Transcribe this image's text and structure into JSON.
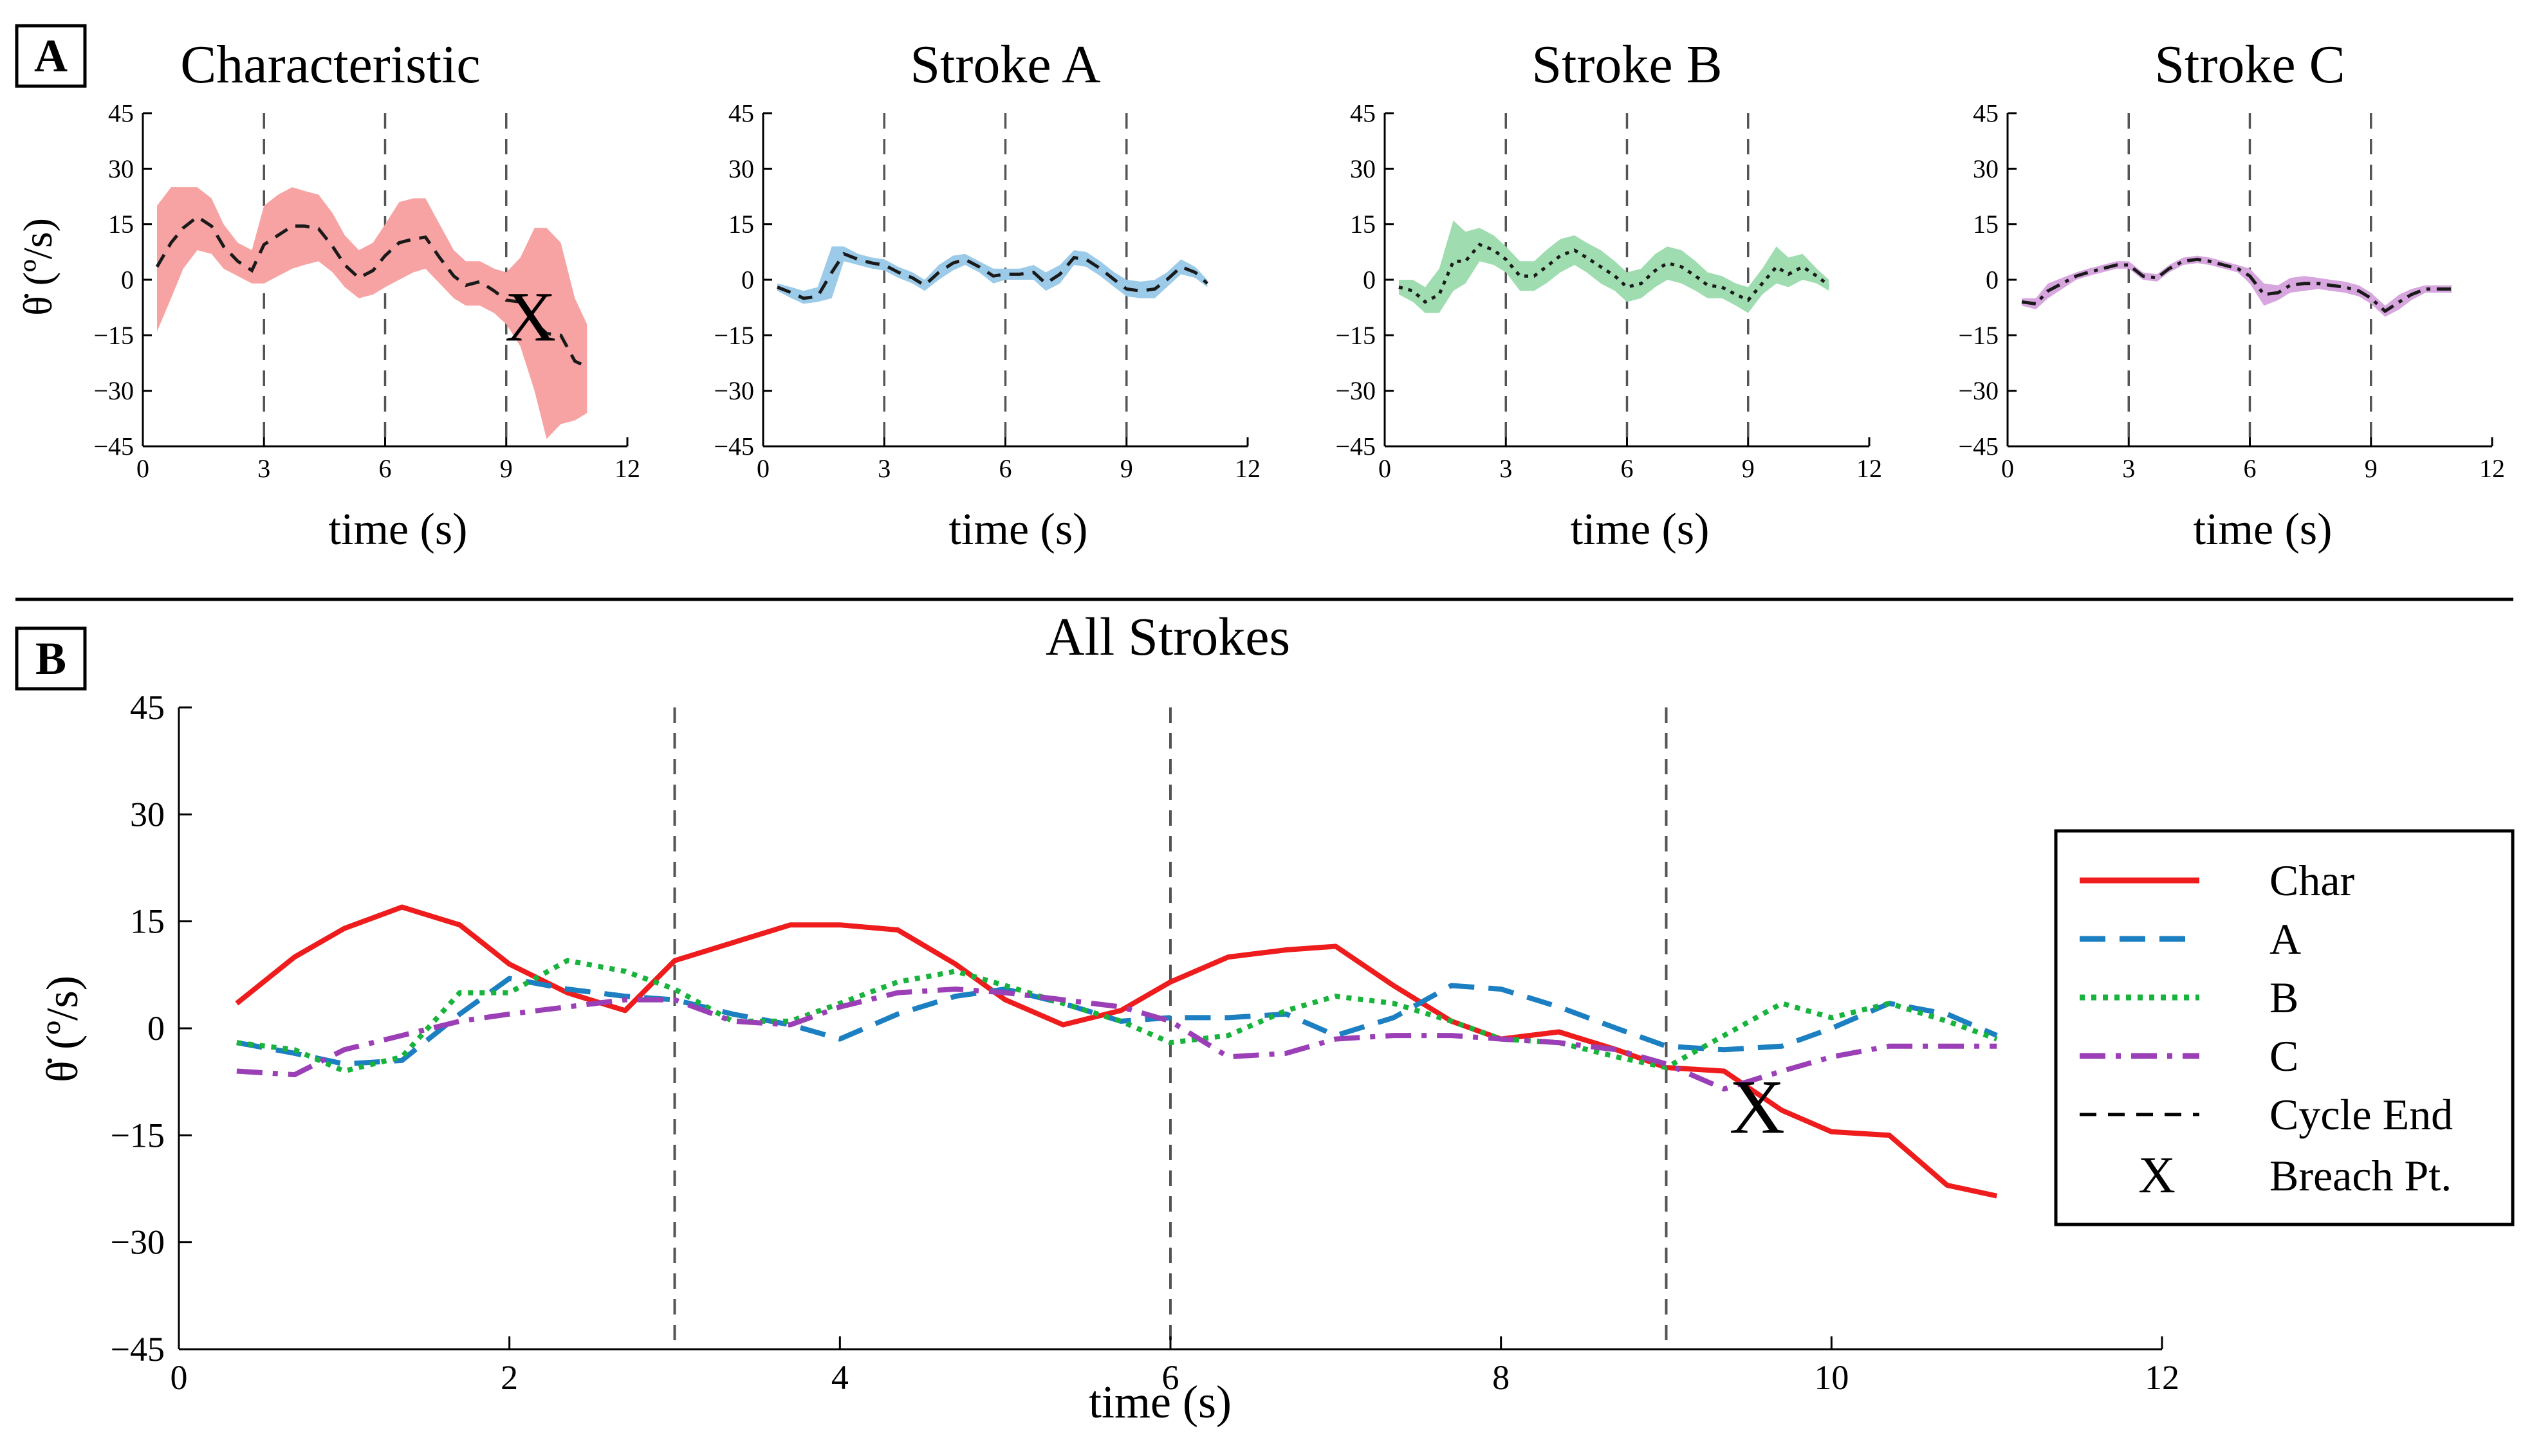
{
  "panel_labels": {
    "a": "A",
    "b": "B"
  },
  "legend": {
    "entries": [
      {
        "key": "char",
        "label": "Char"
      },
      {
        "key": "a",
        "label": "A"
      },
      {
        "key": "b",
        "label": "B"
      },
      {
        "key": "c",
        "label": "C"
      },
      {
        "key": "cycle",
        "label": "Cycle End"
      },
      {
        "key": "breach",
        "label": "Breach Pt."
      }
    ],
    "breach_marker": "X"
  },
  "colors": {
    "char": "#ee1c1c",
    "a": "#1b7fc1",
    "b": "#18b33c",
    "c": "#9b3fb6",
    "char_band": "#f7a3a3",
    "a_band": "#9ccbe9",
    "b_band": "#9fddb0",
    "c_band": "#d7a6df",
    "mean_line": "#1a1a1a"
  },
  "chart_data": [
    {
      "id": "char",
      "type": "area",
      "title": "Characteristic",
      "xlabel": "time (s)",
      "ylabel": "θ̇ (º/s)",
      "xlim": [
        0,
        12
      ],
      "ylim": [
        -45,
        45
      ],
      "xticks": [
        0,
        3,
        6,
        9,
        12
      ],
      "yticks": [
        45,
        30,
        15,
        0,
        -15,
        -30,
        -45
      ],
      "cycle_ends": [
        3,
        6,
        9
      ],
      "breach": {
        "x": 9.6,
        "y": -10,
        "marker": "X"
      },
      "x": [
        0.35,
        0.7,
        1.0,
        1.35,
        1.7,
        2.0,
        2.35,
        2.7,
        3.0,
        3.35,
        3.7,
        4.0,
        4.35,
        4.7,
        5.0,
        5.35,
        5.7,
        6.0,
        6.35,
        6.7,
        7.0,
        7.35,
        7.7,
        8.0,
        8.35,
        8.7,
        9.0,
        9.35,
        9.7,
        10.0,
        10.35,
        10.7,
        11.0
      ],
      "mean": [
        3.5,
        10,
        14,
        17,
        14.5,
        9,
        5,
        2.5,
        9.5,
        12,
        14.5,
        14.5,
        13.8,
        9,
        4,
        0.5,
        2.5,
        6.5,
        10,
        11,
        11.5,
        6,
        1,
        -1.5,
        -0.5,
        -3,
        -5.5,
        -6,
        -11.5,
        -14.5,
        -15,
        -22,
        -23.5
      ],
      "upper": [
        20,
        25,
        25,
        25,
        22,
        15,
        10,
        8,
        20,
        23,
        25,
        24,
        23,
        18,
        12,
        8,
        10,
        15,
        21,
        22,
        22,
        15,
        8,
        5,
        5,
        3,
        2,
        6,
        14,
        14,
        10,
        -5,
        -12
      ],
      "lower": [
        -14,
        -5,
        3,
        8,
        7,
        3,
        1,
        -1,
        -1,
        1,
        3,
        4,
        5,
        2,
        -2,
        -5,
        -4,
        -2,
        0,
        2,
        3,
        -1,
        -5,
        -7,
        -7,
        -9,
        -12,
        -18,
        -30,
        -43,
        -39,
        -38,
        -36
      ]
    },
    {
      "id": "a",
      "type": "area",
      "title": "Stroke A",
      "xlabel": "time (s)",
      "ylabel": "",
      "xlim": [
        0,
        12
      ],
      "ylim": [
        -45,
        45
      ],
      "xticks": [
        0,
        3,
        6,
        9,
        12
      ],
      "yticks": [
        45,
        30,
        15,
        0,
        -15,
        -30,
        -45
      ],
      "cycle_ends": [
        3,
        6,
        9
      ],
      "x": [
        0.35,
        0.7,
        1.0,
        1.35,
        1.7,
        2.0,
        2.35,
        2.7,
        3.0,
        3.35,
        3.7,
        4.0,
        4.35,
        4.7,
        5.0,
        5.35,
        5.7,
        6.0,
        6.35,
        6.7,
        7.0,
        7.35,
        7.7,
        8.0,
        8.35,
        8.7,
        9.0,
        9.35,
        9.7,
        10.0,
        10.35,
        10.7,
        11.0
      ],
      "mean": [
        -2,
        -3.5,
        -5,
        -4.5,
        2,
        7,
        5.5,
        4.5,
        4,
        2,
        0.5,
        -1.5,
        2,
        4.5,
        5.5,
        3.5,
        1,
        1.5,
        1.5,
        2,
        -1,
        1.5,
        6,
        5.5,
        3,
        0,
        -2.5,
        -3,
        -2.5,
        0,
        3.5,
        2,
        -1
      ],
      "upper": [
        -1,
        -2,
        -3,
        -2,
        9,
        9,
        7,
        6,
        5.5,
        3.5,
        2,
        0,
        4,
        6.5,
        7,
        5,
        3,
        3,
        3,
        4,
        2,
        4,
        8,
        7.5,
        5,
        2,
        0,
        -0.5,
        0,
        2,
        5.5,
        3.5,
        0
      ],
      "lower": [
        -3,
        -5,
        -6.5,
        -6,
        -5,
        5,
        4,
        3,
        2.5,
        0.5,
        -1,
        -3,
        0,
        2.5,
        4,
        2,
        -1,
        0,
        0,
        0,
        -3,
        -1,
        4,
        3.5,
        1,
        -2,
        -4.5,
        -5,
        -5,
        -2,
        1.5,
        0.5,
        -2
      ]
    },
    {
      "id": "b",
      "type": "area",
      "title": "Stroke B",
      "xlabel": "time (s)",
      "ylabel": "",
      "xlim": [
        0,
        12
      ],
      "ylim": [
        -45,
        45
      ],
      "xticks": [
        0,
        3,
        6,
        9,
        12
      ],
      "yticks": [
        45,
        30,
        15,
        0,
        -15,
        -30,
        -45
      ],
      "cycle_ends": [
        3,
        6,
        9
      ],
      "x": [
        0.35,
        0.7,
        1.0,
        1.35,
        1.7,
        2.0,
        2.35,
        2.7,
        3.0,
        3.35,
        3.7,
        4.0,
        4.35,
        4.7,
        5.0,
        5.35,
        5.7,
        6.0,
        6.35,
        6.7,
        7.0,
        7.35,
        7.7,
        8.0,
        8.35,
        8.7,
        9.0,
        9.35,
        9.7,
        10.0,
        10.35,
        10.7,
        11.0
      ],
      "mean": [
        -2,
        -3,
        -6,
        -4,
        5,
        5,
        9.5,
        8,
        5.5,
        1,
        1,
        3.5,
        6.5,
        8,
        6,
        3.5,
        1,
        -2,
        -1,
        2.5,
        4.5,
        3.5,
        1,
        -1.5,
        -2,
        -4,
        -5.5,
        -1,
        3.5,
        1.5,
        3.5,
        1,
        -1.5
      ],
      "upper": [
        0,
        0,
        -2,
        3,
        16,
        13,
        14,
        12,
        9,
        5,
        5,
        8,
        11,
        12,
        10,
        8,
        5,
        2,
        3,
        7,
        9,
        8,
        5,
        2,
        1,
        -1,
        -2,
        3,
        9,
        6,
        7,
        3,
        0
      ],
      "lower": [
        -4,
        -6,
        -9,
        -9,
        -3,
        -1,
        5,
        4,
        2,
        -3,
        -3,
        -1,
        2,
        4,
        2,
        -1,
        -3,
        -6,
        -5,
        -2,
        0,
        -1,
        -3,
        -5,
        -5,
        -7,
        -9,
        -4,
        -1,
        -2,
        0,
        -1,
        -3
      ]
    },
    {
      "id": "c",
      "type": "area",
      "title": "Stroke C",
      "xlabel": "time (s)",
      "ylabel": "",
      "xlim": [
        0,
        12
      ],
      "ylim": [
        -45,
        45
      ],
      "xticks": [
        0,
        3,
        6,
        9,
        12
      ],
      "yticks": [
        45,
        30,
        15,
        0,
        -15,
        -30,
        -45
      ],
      "cycle_ends": [
        3,
        6,
        9
      ],
      "x": [
        0.35,
        0.7,
        1.0,
        1.35,
        1.7,
        2.0,
        2.35,
        2.7,
        3.0,
        3.35,
        3.7,
        4.0,
        4.35,
        4.7,
        5.0,
        5.35,
        5.7,
        6.0,
        6.35,
        6.7,
        7.0,
        7.35,
        7.7,
        8.0,
        8.35,
        8.7,
        9.0,
        9.35,
        9.7,
        10.0,
        10.35,
        10.7,
        11.0
      ],
      "mean": [
        -6,
        -6.5,
        -3,
        -1,
        1,
        2,
        3,
        4,
        4,
        1,
        0.5,
        3,
        5,
        5.5,
        5,
        4,
        3,
        1,
        -4,
        -3.5,
        -1.5,
        -1,
        -1,
        -1.5,
        -2,
        -3,
        -5,
        -8.5,
        -6,
        -4,
        -2.5,
        -2.5,
        -2.5
      ],
      "upper": [
        -5,
        -5,
        -1,
        0.5,
        2,
        3,
        4,
        5,
        5,
        2,
        1.5,
        4,
        6,
        6.5,
        6,
        5,
        4,
        3,
        -1,
        -1.5,
        0.5,
        1,
        0.5,
        0,
        -0.5,
        -1.5,
        -3.5,
        -7,
        -4,
        -2.5,
        -1.5,
        -1.5,
        -1.5
      ],
      "lower": [
        -7,
        -8,
        -5,
        -2.5,
        0,
        1,
        2,
        3,
        3,
        0,
        -0.5,
        2,
        4,
        4.5,
        4,
        3,
        2,
        -1,
        -7,
        -5.5,
        -3.5,
        -3,
        -2.5,
        -3,
        -3.5,
        -4.5,
        -6.5,
        -10,
        -8,
        -5.5,
        -3.5,
        -3.5,
        -3.5
      ]
    },
    {
      "id": "all",
      "type": "line",
      "title": "All Strokes",
      "xlabel": "time (s)",
      "ylabel": "θ̇ (º/s)",
      "xlim": [
        0,
        12
      ],
      "ylim": [
        -45,
        45
      ],
      "xticks": [
        0,
        2,
        4,
        6,
        8,
        10,
        12
      ],
      "yticks": [
        45,
        30,
        15,
        0,
        -15,
        -30,
        -45
      ],
      "cycle_ends": [
        3,
        6,
        9
      ],
      "breach": {
        "x": 9.55,
        "y": -11,
        "marker": "X"
      },
      "x": [
        0.35,
        0.7,
        1.0,
        1.35,
        1.7,
        2.0,
        2.35,
        2.7,
        3.0,
        3.35,
        3.7,
        4.0,
        4.35,
        4.7,
        5.0,
        5.35,
        5.7,
        6.0,
        6.35,
        6.7,
        7.0,
        7.35,
        7.7,
        8.0,
        8.35,
        8.7,
        9.0,
        9.35,
        9.7,
        10.0,
        10.35,
        10.7,
        11.0
      ],
      "series": [
        {
          "name": "Char",
          "key": "char",
          "values": [
            3.5,
            10,
            14,
            17,
            14.5,
            9,
            5,
            2.5,
            9.5,
            12,
            14.5,
            14.5,
            13.8,
            9,
            4,
            0.5,
            2.5,
            6.5,
            10,
            11,
            11.5,
            6,
            1,
            -1.5,
            -0.5,
            -3,
            -5.5,
            -6,
            -11.5,
            -14.5,
            -15,
            -22,
            -23.5
          ]
        },
        {
          "name": "A",
          "key": "a",
          "values": [
            -2,
            -3.5,
            -5,
            -4.5,
            2,
            7,
            5.5,
            4.5,
            4,
            2,
            0.5,
            -1.5,
            2,
            4.5,
            5.5,
            3.5,
            1,
            1.5,
            1.5,
            2,
            -1,
            1.5,
            6,
            5.5,
            3,
            0,
            -2.5,
            -3,
            -2.5,
            0,
            3.5,
            2,
            -1
          ]
        },
        {
          "name": "B",
          "key": "b",
          "values": [
            -2,
            -3,
            -6,
            -4,
            5,
            5,
            9.5,
            8,
            5.5,
            1,
            1,
            3.5,
            6.5,
            8,
            6,
            3.5,
            1,
            -2,
            -1,
            2.5,
            4.5,
            3.5,
            1,
            -1.5,
            -2,
            -4,
            -5.5,
            -1,
            3.5,
            1.5,
            3.5,
            1,
            -1.5
          ]
        },
        {
          "name": "C",
          "key": "c",
          "values": [
            -6,
            -6.5,
            -3,
            -1,
            1,
            2,
            3,
            4,
            4,
            1,
            0.5,
            3,
            5,
            5.5,
            5,
            4,
            3,
            1,
            -4,
            -3.5,
            -1.5,
            -1,
            -1,
            -1.5,
            -2,
            -3,
            -5,
            -8.5,
            -6,
            -4,
            -2.5,
            -2.5,
            -2.5
          ]
        }
      ]
    }
  ]
}
